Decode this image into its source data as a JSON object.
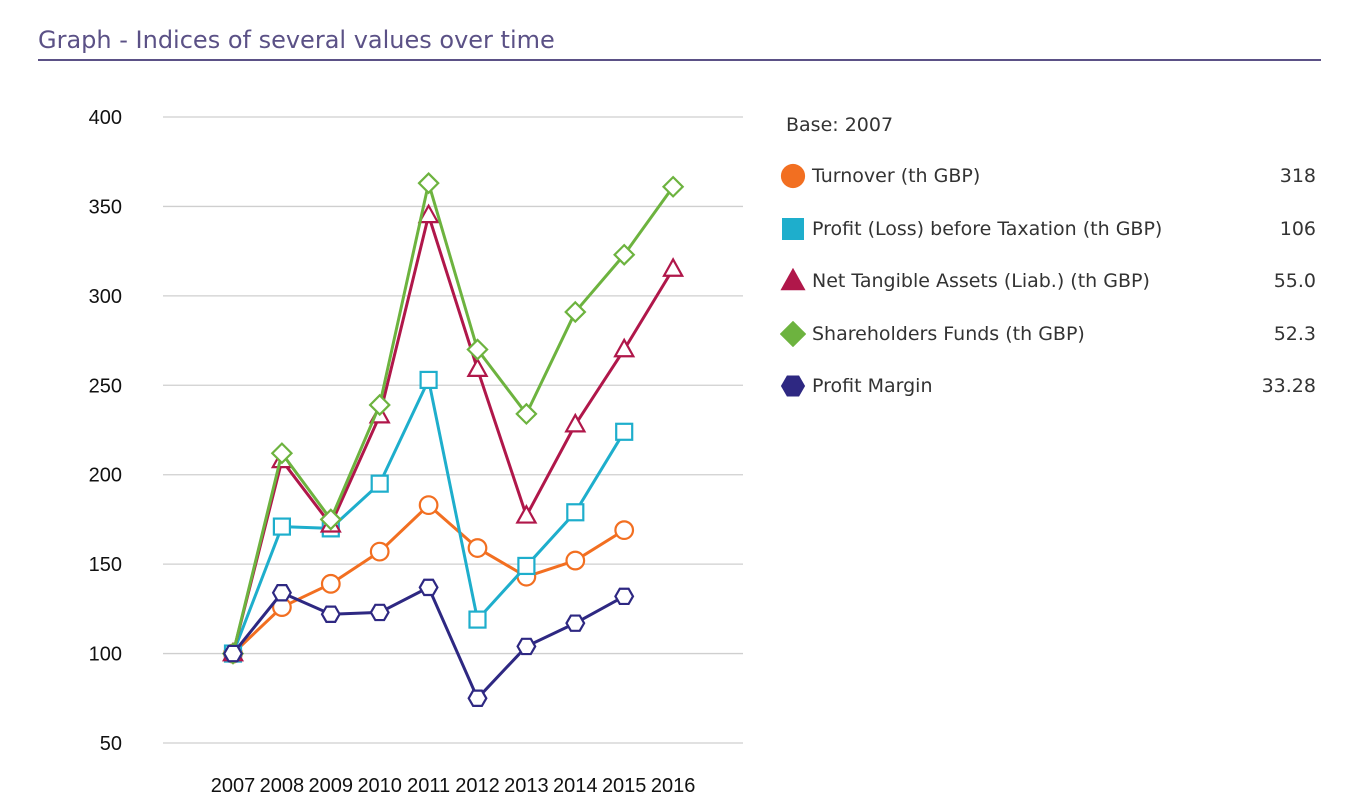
{
  "page": {
    "title": "Graph - Indices of several values over time"
  },
  "legend": {
    "base_label": "Base: 2007",
    "items": [
      {
        "label": "Turnover (th GBP)",
        "value": "318",
        "color": "#f26f21",
        "marker": "circle"
      },
      {
        "label": "Profit (Loss) before Taxation (th GBP)",
        "value": "106",
        "color": "#1eaecc",
        "marker": "square"
      },
      {
        "label": "Net Tangible Assets (Liab.) (th GBP)",
        "value": "55.0",
        "color": "#b0174a",
        "marker": "triangle"
      },
      {
        "label": "Shareholders Funds (th GBP)",
        "value": "52.3",
        "color": "#6db33f",
        "marker": "diamond"
      },
      {
        "label": "Profit Margin",
        "value": "33.28",
        "color": "#2e2882",
        "marker": "hexagon"
      }
    ]
  },
  "chart_data": {
    "type": "line",
    "title": "Graph - Indices of several values over time",
    "xlabel": "",
    "ylabel": "",
    "x": [
      "2007",
      "2008",
      "2009",
      "2010",
      "2011",
      "2012",
      "2013",
      "2014",
      "2015",
      "2016"
    ],
    "ylim": [
      50,
      400
    ],
    "yticks": [
      400,
      350,
      300,
      250,
      200,
      150,
      100,
      50
    ],
    "grid": true,
    "legend_position": "right",
    "series": [
      {
        "name": "Turnover (th GBP)",
        "color": "#f26f21",
        "marker": "circle",
        "values": [
          100,
          126,
          139,
          157,
          183,
          159,
          143,
          152,
          169,
          null
        ]
      },
      {
        "name": "Profit (Loss) before Taxation (th GBP)",
        "color": "#1eaecc",
        "marker": "square",
        "values": [
          100,
          171,
          170,
          195,
          253,
          119,
          149,
          179,
          224,
          null
        ]
      },
      {
        "name": "Net Tangible Assets (Liab.) (th GBP)",
        "color": "#b0174a",
        "marker": "triangle",
        "values": [
          100,
          208,
          172,
          233,
          345,
          259,
          177,
          228,
          270,
          315
        ]
      },
      {
        "name": "Shareholders Funds (th GBP)",
        "color": "#6db33f",
        "marker": "diamond",
        "values": [
          100,
          212,
          175,
          239,
          363,
          270,
          234,
          291,
          323,
          361
        ]
      },
      {
        "name": "Profit Margin",
        "color": "#2e2882",
        "marker": "hexagon",
        "values": [
          100,
          134,
          122,
          123,
          137,
          75,
          104,
          117,
          132,
          null
        ]
      }
    ]
  }
}
